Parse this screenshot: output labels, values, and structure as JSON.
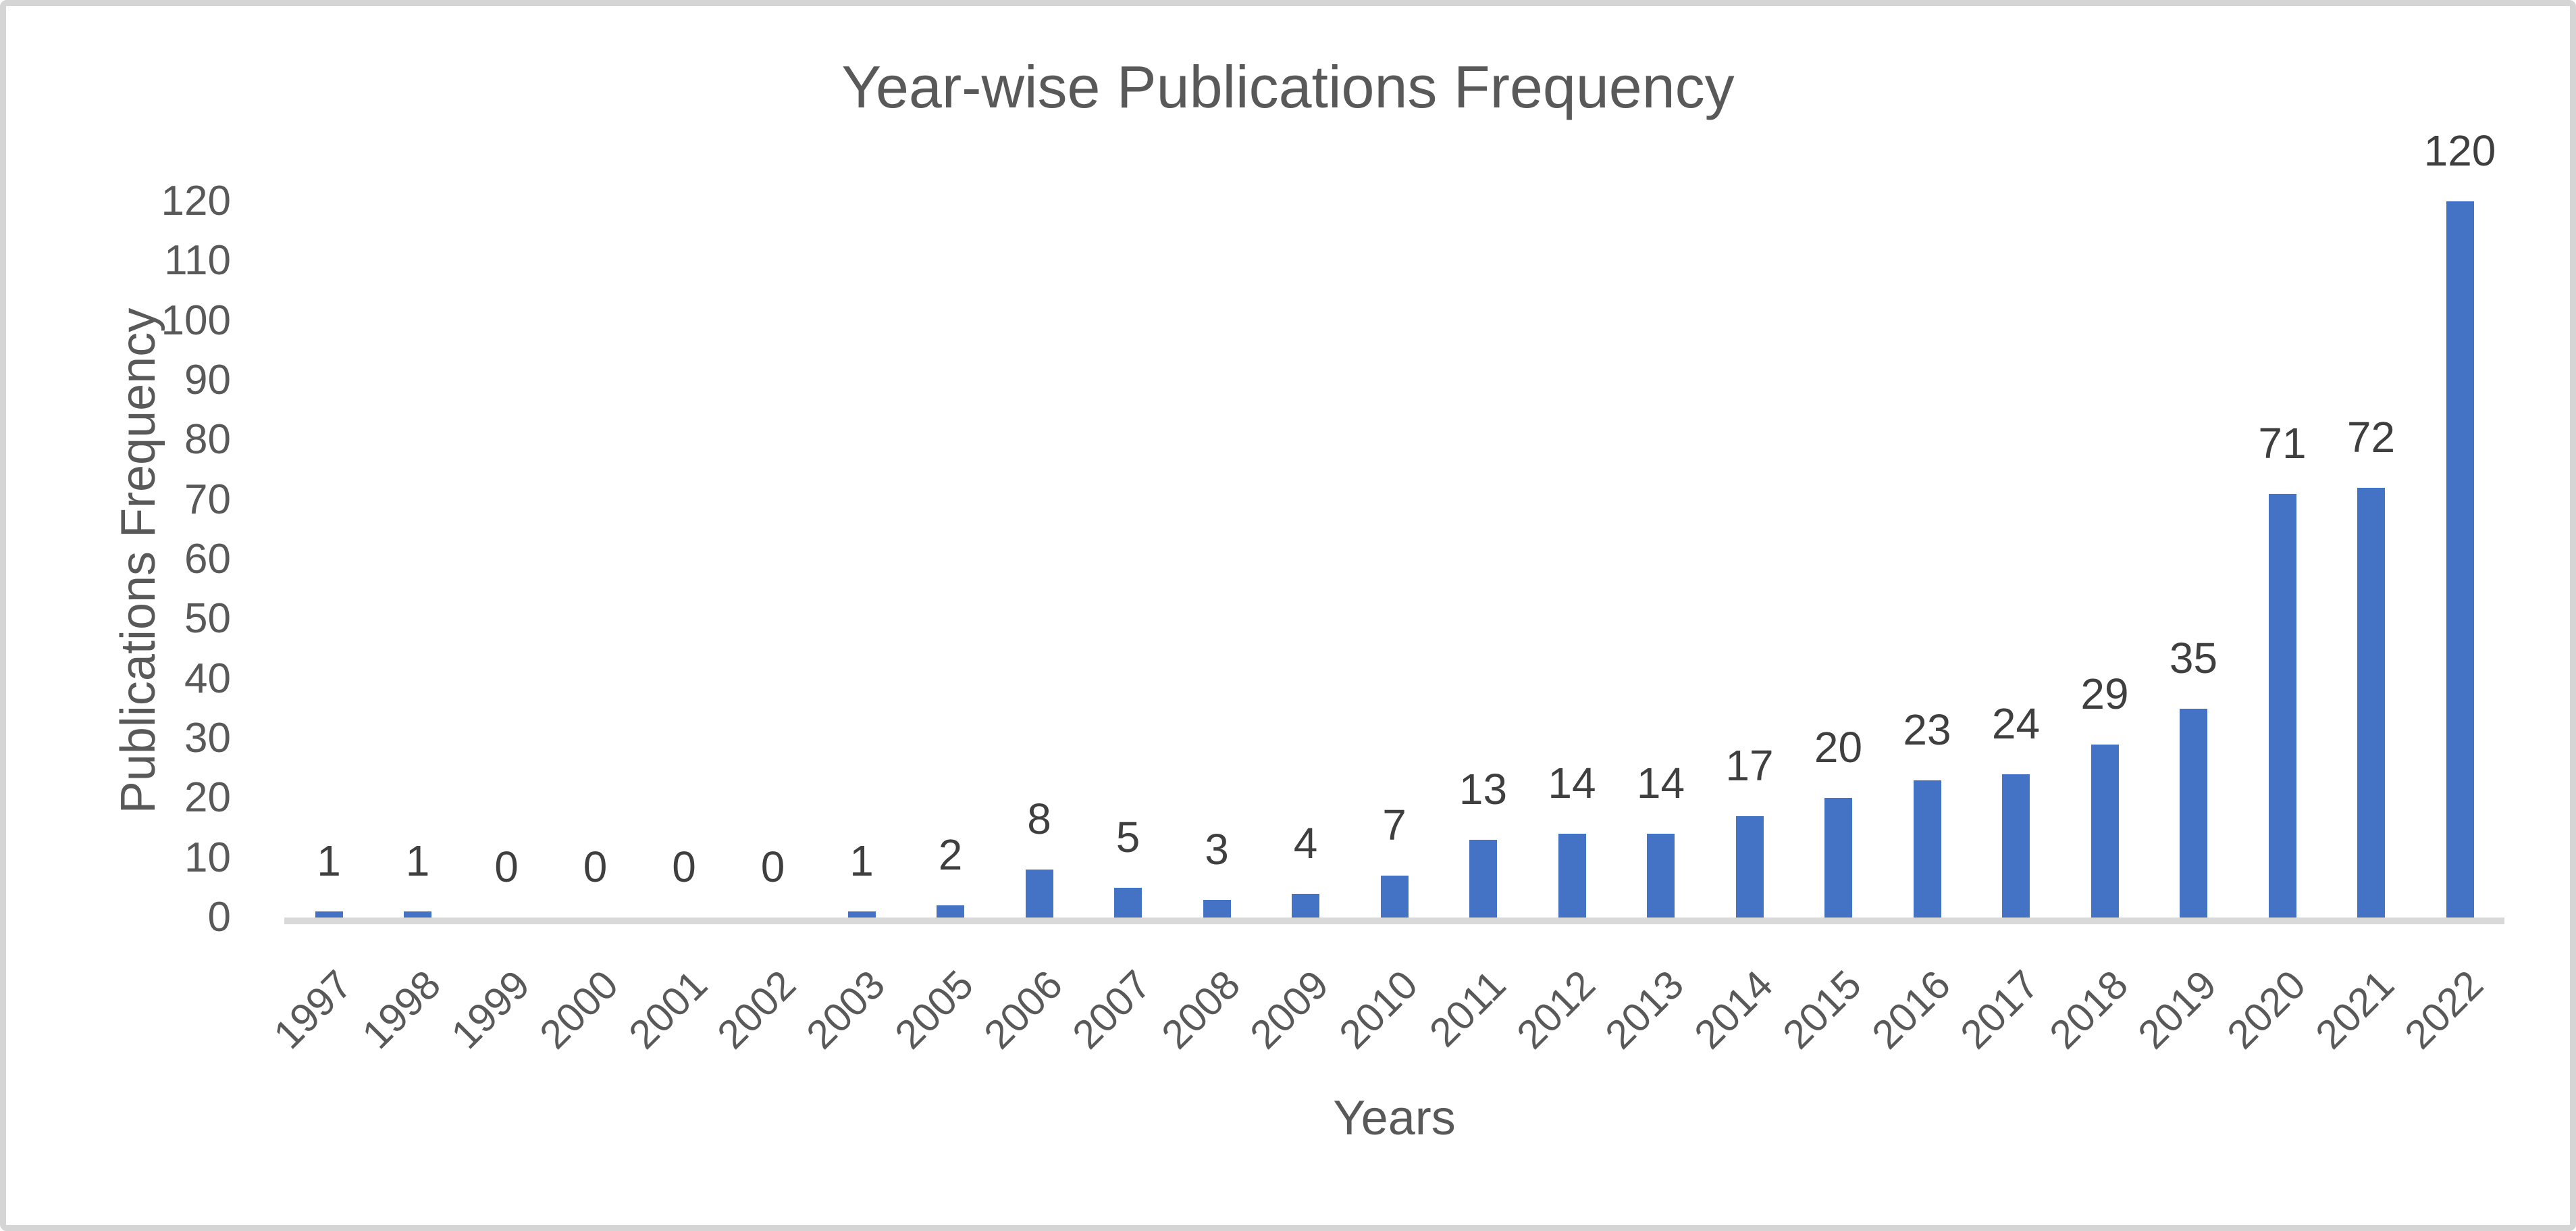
{
  "chart_data": {
    "type": "bar",
    "title": "Year-wise Publications Frequency",
    "xlabel": "Years",
    "ylabel": "Publications Frequency",
    "categories": [
      "1997",
      "1998",
      "1999",
      "2000",
      "2001",
      "2002",
      "2003",
      "2005",
      "2006",
      "2007",
      "2008",
      "2009",
      "2010",
      "2011",
      "2012",
      "2013",
      "2014",
      "2015",
      "2016",
      "2017",
      "2018",
      "2019",
      "2020",
      "2021",
      "2022"
    ],
    "values": [
      1,
      1,
      0,
      0,
      0,
      0,
      1,
      2,
      8,
      5,
      3,
      4,
      7,
      13,
      14,
      14,
      17,
      20,
      23,
      24,
      29,
      35,
      71,
      72,
      120
    ],
    "data_labels": [
      1,
      1,
      0,
      0,
      0,
      0,
      1,
      2,
      8,
      5,
      3,
      4,
      7,
      13,
      14,
      14,
      17,
      20,
      23,
      24,
      29,
      35,
      71,
      72,
      120
    ],
    "ylim": [
      0,
      120
    ],
    "ytick_step": 10,
    "yticks": [
      0,
      10,
      20,
      30,
      40,
      50,
      60,
      70,
      80,
      90,
      100,
      110,
      120
    ],
    "grid": false,
    "legend_position": "none",
    "x_tick_rotation_deg": 45
  },
  "colors": {
    "bar": "#4472C4",
    "title_text": "#595959",
    "axis_text": "#595959",
    "data_label_text": "#3f3f3f",
    "axis_line": "#d9d9d9",
    "frame_border": "#d5d5d5",
    "background": "#ffffff"
  }
}
